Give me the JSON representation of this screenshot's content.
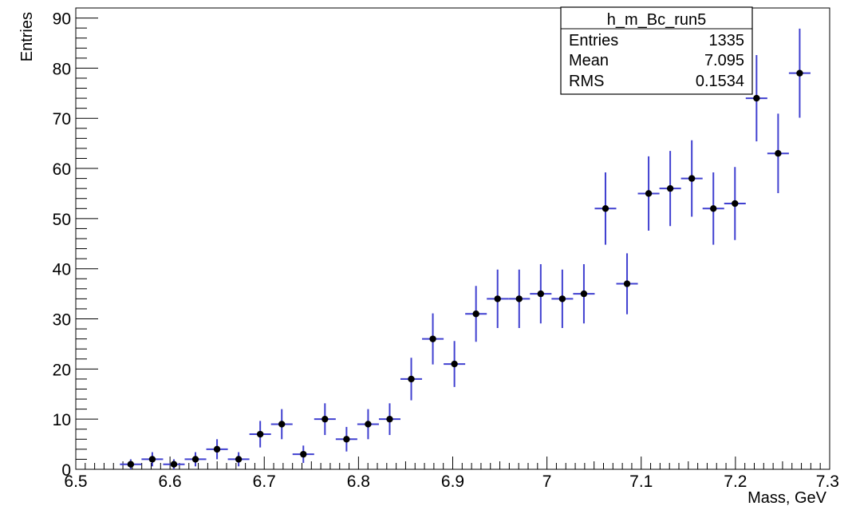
{
  "chart_data": {
    "type": "scatter",
    "xlabel": "Mass, GeV",
    "ylabel": "Entries",
    "xlim": [
      6.5,
      7.3
    ],
    "ylim": [
      0,
      92
    ],
    "xticks": [
      "6.5",
      "6.6",
      "6.7",
      "6.8",
      "6.9",
      "7",
      "7.1",
      "7.2",
      "7.3"
    ],
    "yticks": [
      "0",
      "10",
      "20",
      "30",
      "40",
      "50",
      "60",
      "70",
      "80",
      "90"
    ],
    "bin_width": 0.0229,
    "grid": false,
    "marker_color": "#000000",
    "errorbar_color": "#4040d0",
    "series": [
      {
        "x": [
          6.5583,
          6.5812,
          6.6041,
          6.627,
          6.6499,
          6.6728,
          6.6957,
          6.7186,
          6.7415,
          6.7644,
          6.7873,
          6.8102,
          6.8331,
          6.856,
          6.8789,
          6.9018,
          6.9247,
          6.9476,
          6.9705,
          6.9934,
          7.0163,
          7.0392,
          7.0621,
          7.085,
          7.1079,
          7.1308,
          7.1537,
          7.1766,
          7.1995,
          7.2224,
          7.2453,
          7.2682
        ],
        "y": [
          1,
          2,
          1,
          2,
          4,
          2,
          7,
          9,
          3,
          10,
          6,
          9,
          10,
          18,
          26,
          21,
          31,
          34,
          34,
          35,
          34,
          35,
          52,
          37,
          55,
          56,
          58,
          52,
          53,
          74,
          63,
          79
        ]
      }
    ],
    "stats_box": {
      "title": "h_m_Bc_run5",
      "rows": [
        {
          "label": "Entries",
          "value": "1335"
        },
        {
          "label": "Mean",
          "value": "7.095"
        },
        {
          "label": "RMS",
          "value": "0.1534"
        }
      ],
      "placement": "top-right"
    }
  }
}
